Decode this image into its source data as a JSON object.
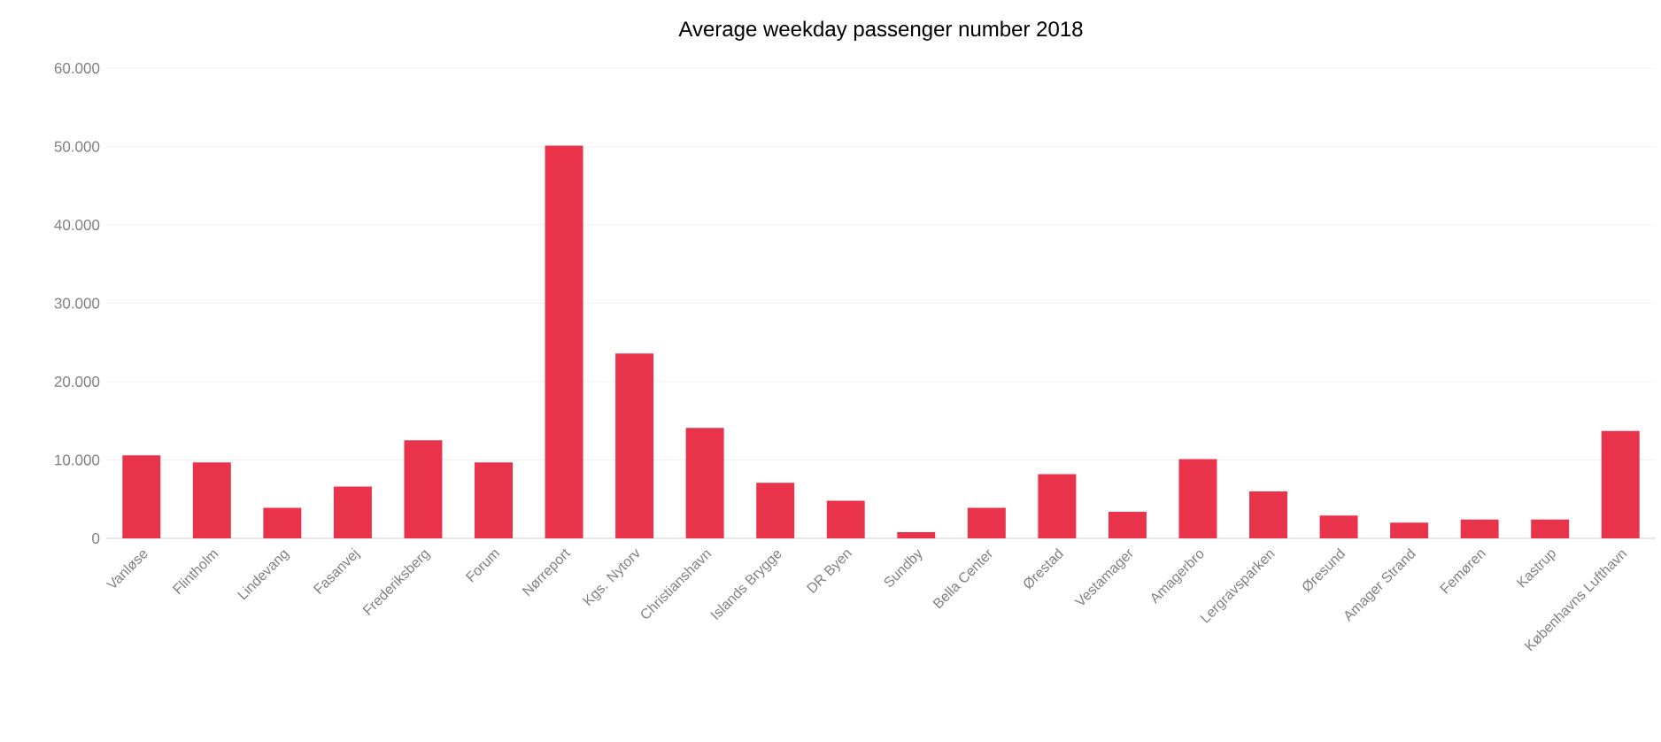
{
  "chart_data": {
    "type": "bar",
    "title": "Average weekday passenger number 2018",
    "categories": [
      "Vanløse",
      "Flintholm",
      "Lindevang",
      "Fasanvej",
      "Frederiksberg",
      "Forum",
      "Nørreport",
      "Kgs. Nytorv",
      "Christianshavn",
      "Islands Brygge",
      "DR Byen",
      "Sundby",
      "Bella Center",
      "Ørestad",
      "Vestamager",
      "Amagerbro",
      "Lergravsparken",
      "Øresund",
      "Amager Strand",
      "Femøren",
      "Kastrup",
      "Københavns Lufthavn"
    ],
    "values": [
      10600,
      9700,
      3900,
      6600,
      12500,
      9700,
      50100,
      23600,
      14100,
      7100,
      4800,
      800,
      3900,
      8200,
      3400,
      10100,
      6000,
      2900,
      2000,
      2400,
      2400,
      13700
    ],
    "color": "#e8334a",
    "ylim": [
      0,
      60000
    ],
    "yticks": [
      {
        "value": 0,
        "label": "0"
      },
      {
        "value": 10000,
        "label": "10.000"
      },
      {
        "value": 20000,
        "label": "20.000"
      },
      {
        "value": 30000,
        "label": "30.000"
      },
      {
        "value": 40000,
        "label": "40.000"
      },
      {
        "value": 50000,
        "label": "50.000"
      },
      {
        "value": 60000,
        "label": "60.000"
      }
    ],
    "grid": "y"
  }
}
